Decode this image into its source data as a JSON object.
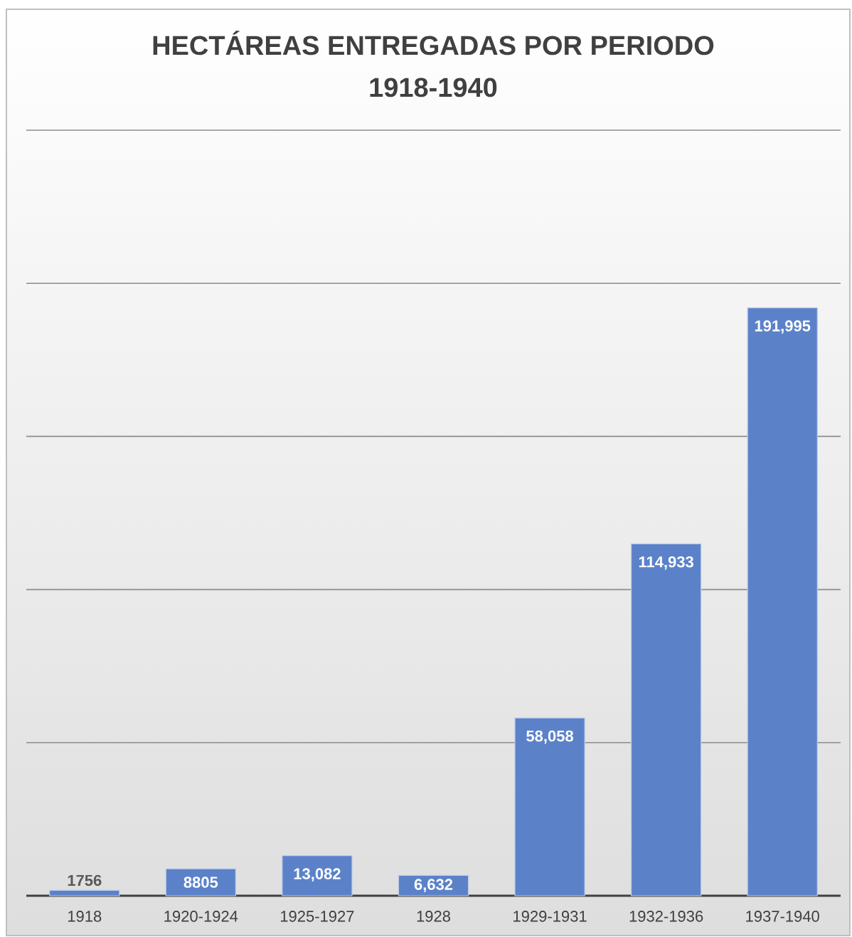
{
  "chart_data": {
    "type": "bar",
    "title": "HECTÁREAS ENTREGADAS POR PERIODO",
    "subtitle": "1918-1940",
    "categories": [
      "1918",
      "1920-1924",
      "1925-1927",
      "1928",
      "1929-1931",
      "1932-1936",
      "1937-1940"
    ],
    "values": [
      1756,
      8805,
      13082,
      6632,
      58058,
      114933,
      191995
    ],
    "value_labels": [
      "1756",
      "8805",
      "13,082",
      "6,632",
      "58,058",
      "114,933",
      "191,995"
    ],
    "color": "#5b82c9",
    "ylim": [
      0,
      250000
    ],
    "yticks": [
      {
        "value": 50000,
        "label": null
      },
      {
        "value": 100000,
        "label": null
      },
      {
        "value": 150000,
        "label": null
      },
      {
        "value": 200000,
        "label": null
      },
      {
        "value": 250000,
        "label": null
      }
    ],
    "grid": "y",
    "tick_labels": "x"
  }
}
